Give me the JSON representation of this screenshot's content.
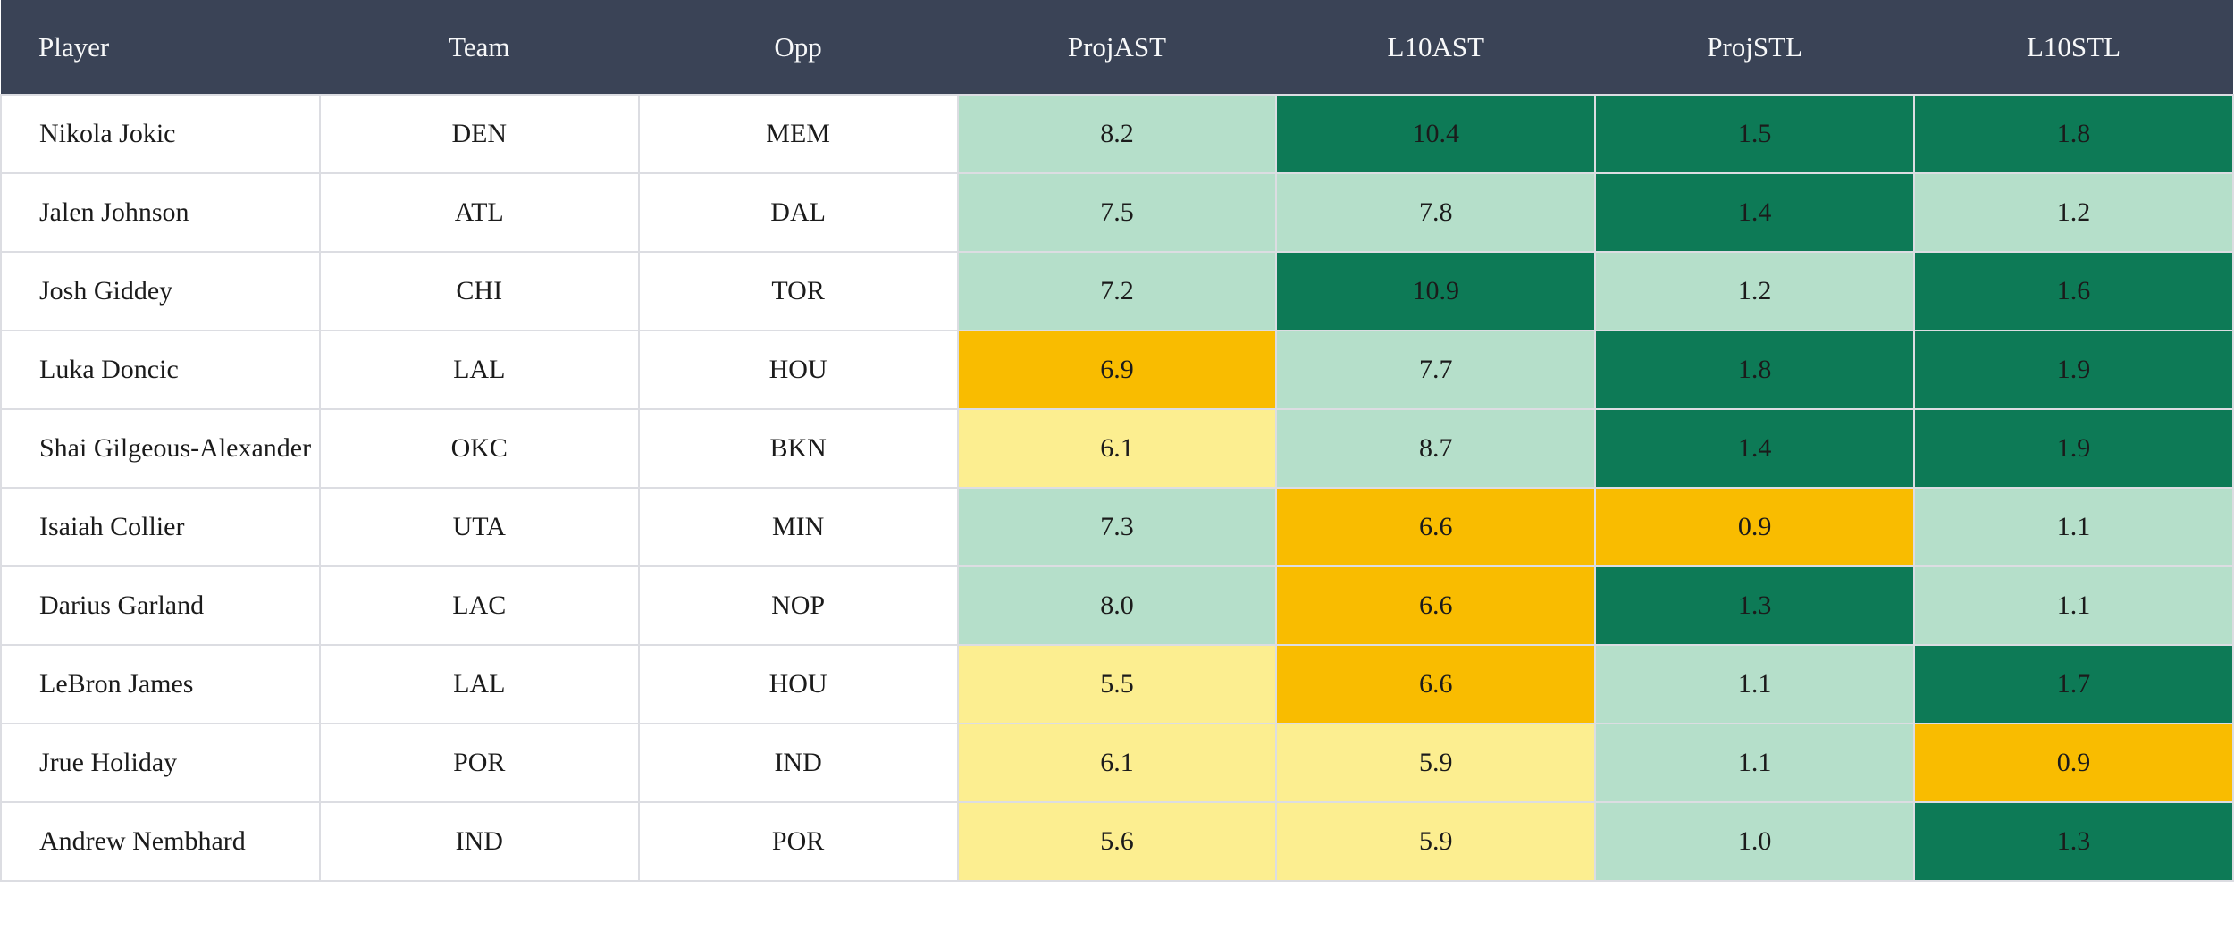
{
  "table": {
    "columns": [
      {
        "label": "Player"
      },
      {
        "label": "Team"
      },
      {
        "label": "Opp"
      },
      {
        "label": "ProjAST"
      },
      {
        "label": "L10AST"
      },
      {
        "label": "ProjSTL"
      },
      {
        "label": "L10STL"
      }
    ],
    "rows": [
      {
        "player": "Nikola Jokic",
        "team": "DEN",
        "opp": "MEM",
        "stats": [
          {
            "value": "8.2",
            "tone": "green-light"
          },
          {
            "value": "10.4",
            "tone": "green-dark"
          },
          {
            "value": "1.5",
            "tone": "green-dark"
          },
          {
            "value": "1.8",
            "tone": "green-dark"
          }
        ]
      },
      {
        "player": "Jalen Johnson",
        "team": "ATL",
        "opp": "DAL",
        "stats": [
          {
            "value": "7.5",
            "tone": "green-light"
          },
          {
            "value": "7.8",
            "tone": "green-light"
          },
          {
            "value": "1.4",
            "tone": "green-dark"
          },
          {
            "value": "1.2",
            "tone": "green-light"
          }
        ]
      },
      {
        "player": "Josh Giddey",
        "team": "CHI",
        "opp": "TOR",
        "stats": [
          {
            "value": "7.2",
            "tone": "green-light"
          },
          {
            "value": "10.9",
            "tone": "green-dark"
          },
          {
            "value": "1.2",
            "tone": "green-light"
          },
          {
            "value": "1.6",
            "tone": "green-dark"
          }
        ]
      },
      {
        "player": "Luka Doncic",
        "team": "LAL",
        "opp": "HOU",
        "stats": [
          {
            "value": "6.9",
            "tone": "amber"
          },
          {
            "value": "7.7",
            "tone": "green-light"
          },
          {
            "value": "1.8",
            "tone": "green-dark"
          },
          {
            "value": "1.9",
            "tone": "green-dark"
          }
        ]
      },
      {
        "player": "Shai Gilgeous-Alexander",
        "team": "OKC",
        "opp": "BKN",
        "stats": [
          {
            "value": "6.1",
            "tone": "yellow-light"
          },
          {
            "value": "8.7",
            "tone": "green-light"
          },
          {
            "value": "1.4",
            "tone": "green-dark"
          },
          {
            "value": "1.9",
            "tone": "green-dark"
          }
        ]
      },
      {
        "player": "Isaiah Collier",
        "team": "UTA",
        "opp": "MIN",
        "stats": [
          {
            "value": "7.3",
            "tone": "green-light"
          },
          {
            "value": "6.6",
            "tone": "amber"
          },
          {
            "value": "0.9",
            "tone": "amber"
          },
          {
            "value": "1.1",
            "tone": "green-light"
          }
        ]
      },
      {
        "player": "Darius Garland",
        "team": "LAC",
        "opp": "NOP",
        "stats": [
          {
            "value": "8.0",
            "tone": "green-light"
          },
          {
            "value": "6.6",
            "tone": "amber"
          },
          {
            "value": "1.3",
            "tone": "green-dark"
          },
          {
            "value": "1.1",
            "tone": "green-light"
          }
        ]
      },
      {
        "player": "LeBron James",
        "team": "LAL",
        "opp": "HOU",
        "stats": [
          {
            "value": "5.5",
            "tone": "yellow-light"
          },
          {
            "value": "6.6",
            "tone": "amber"
          },
          {
            "value": "1.1",
            "tone": "green-light"
          },
          {
            "value": "1.7",
            "tone": "green-dark"
          }
        ]
      },
      {
        "player": "Jrue Holiday",
        "team": "POR",
        "opp": "IND",
        "stats": [
          {
            "value": "6.1",
            "tone": "yellow-light"
          },
          {
            "value": "5.9",
            "tone": "yellow-light"
          },
          {
            "value": "1.1",
            "tone": "green-light"
          },
          {
            "value": "0.9",
            "tone": "amber"
          }
        ]
      },
      {
        "player": "Andrew Nembhard",
        "team": "IND",
        "opp": "POR",
        "stats": [
          {
            "value": "5.6",
            "tone": "yellow-light"
          },
          {
            "value": "5.9",
            "tone": "yellow-light"
          },
          {
            "value": "1.0",
            "tone": "green-light"
          },
          {
            "value": "1.3",
            "tone": "green-dark"
          }
        ]
      }
    ]
  },
  "colors": {
    "header_bg": "#3a4356",
    "header_text": "#f7f8f9",
    "body_text": "#1b1b1b",
    "grid_line": "#dcdde2",
    "green_dark": "#0d7a56",
    "green_light": "#b5dfca",
    "amber": "#f9bc00",
    "yellow_light": "#fcee90"
  }
}
